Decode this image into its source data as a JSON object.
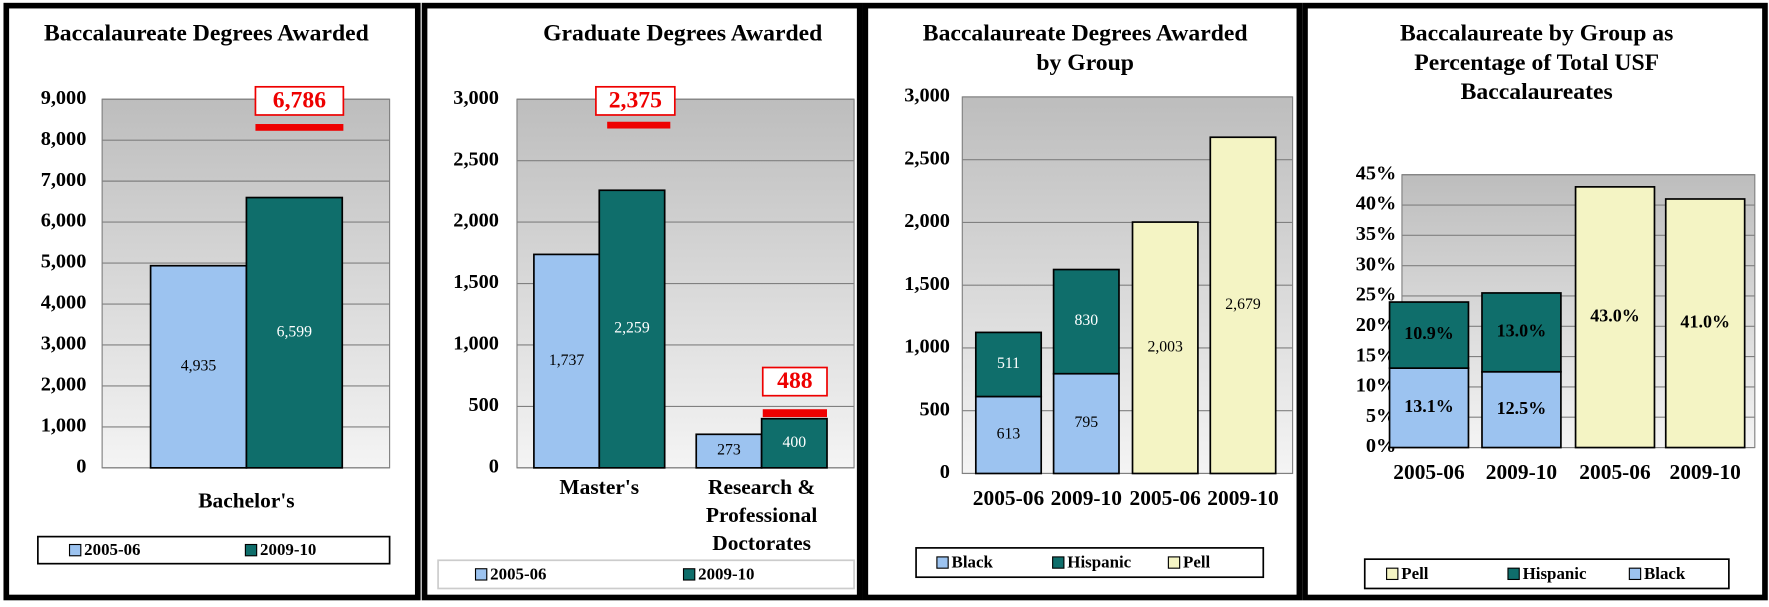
{
  "chart_data": [
    {
      "type": "bar",
      "stacked": false,
      "title": "Baccalaureate Degrees Awarded",
      "categories": [
        "Bachelor's"
      ],
      "series": [
        {
          "name": "2005-06",
          "color": "#9cc3f0",
          "values": [
            4935
          ],
          "value_labels": [
            "4,935"
          ]
        },
        {
          "name": "2009-10",
          "color": "#0f6e6b",
          "values": [
            6599
          ],
          "value_labels": [
            "6,599"
          ]
        }
      ],
      "ylim": [
        0,
        9000
      ],
      "yticks": [
        0,
        {
          "value": 1000,
          "label": "1,000"
        },
        {
          "value": 2000,
          "label": "2,000"
        },
        {
          "value": 3000,
          "label": "3,000"
        },
        {
          "value": 4000,
          "label": "4,000"
        },
        {
          "value": 5000,
          "label": "5,000"
        },
        {
          "value": 6000,
          "label": "6,000"
        },
        {
          "value": 7000,
          "label": "7,000"
        },
        {
          "value": 8000,
          "label": "8,000"
        },
        {
          "value": 9000,
          "label": "9,000"
        }
      ],
      "grid": true,
      "annotations": [
        "6,786"
      ]
    },
    {
      "type": "bar",
      "stacked": false,
      "title": "Graduate Degrees Awarded",
      "categories": [
        "Master's",
        "Research & Professional Doctorates"
      ],
      "series": [
        {
          "name": "2005-06",
          "color": "#9cc3f0",
          "values": [
            1737,
            273
          ],
          "value_labels": [
            "1,737",
            "273"
          ]
        },
        {
          "name": "2009-10",
          "color": "#0f6e6b",
          "values": [
            2259,
            400
          ],
          "value_labels": [
            "2,259",
            "400"
          ]
        }
      ],
      "ylim": [
        0,
        3000
      ],
      "yticks": [
        0,
        500,
        {
          "value": 1000,
          "label": "1,000"
        },
        {
          "value": 1500,
          "label": "1,500"
        },
        {
          "value": 2000,
          "label": "2,000"
        },
        {
          "value": 2500,
          "label": "2,500"
        },
        {
          "value": 3000,
          "label": "3,000"
        }
      ],
      "grid": true,
      "annotations": [
        "2,375",
        "488"
      ]
    },
    {
      "type": "bar",
      "stacked": true,
      "title": "Baccalaureate Degrees Awarded by Group",
      "categories": [
        "2005-06",
        "2009-10",
        "2005-06",
        "2009-10"
      ],
      "series": [
        {
          "name": "Black",
          "color": "#9cc3f0",
          "values": [
            613,
            795,
            null,
            null
          ]
        },
        {
          "name": "Hispanic",
          "color": "#0f6e6b",
          "values": [
            511,
            830,
            null,
            null
          ]
        },
        {
          "name": "Pell",
          "color": "#f4f4c4",
          "values": [
            null,
            null,
            2003,
            2679
          ],
          "value_labels": [
            null,
            null,
            "2,003",
            "2,679"
          ]
        }
      ],
      "ylim": [
        0,
        3000
      ],
      "yticks": [
        0,
        500,
        {
          "value": 1000,
          "label": "1,000"
        },
        {
          "value": 1500,
          "label": "1,500"
        },
        {
          "value": 2000,
          "label": "2,000"
        },
        {
          "value": 2500,
          "label": "2,500"
        },
        {
          "value": 3000,
          "label": "3,000"
        }
      ],
      "grid": true
    },
    {
      "type": "bar",
      "stacked": true,
      "legend_reversed": true,
      "title": "Baccalaureate by Group as Percentage of Total USF Baccalaureates",
      "categories": [
        "2005-06",
        "2009-10",
        "2005-06",
        "2009-10"
      ],
      "series": [
        {
          "name": "Black",
          "color": "#9cc3f0",
          "values": [
            13.1,
            12.5,
            null,
            null
          ],
          "value_labels": [
            "13.1%",
            "12.5%",
            null,
            null
          ]
        },
        {
          "name": "Hispanic",
          "color": "#0f6e6b",
          "values": [
            10.9,
            13.0,
            null,
            null
          ],
          "value_labels": [
            "10.9%",
            "13.0%",
            null,
            null
          ]
        },
        {
          "name": "Pell",
          "color": "#f4f4c4",
          "values": [
            null,
            null,
            43.0,
            41.0
          ],
          "value_labels": [
            null,
            null,
            "43.0%",
            "41.0%"
          ]
        }
      ],
      "ylim": [
        0,
        45
      ],
      "yticks": [
        {
          "value": 0,
          "label": "0%"
        },
        {
          "value": 5,
          "label": "5%"
        },
        {
          "value": 10,
          "label": "10%"
        },
        {
          "value": 15,
          "label": "15%"
        },
        {
          "value": 20,
          "label": "20%"
        },
        {
          "value": 25,
          "label": "25%"
        },
        {
          "value": 30,
          "label": "30%"
        },
        {
          "value": 35,
          "label": "35%"
        },
        {
          "value": 40,
          "label": "40%"
        },
        {
          "value": 45,
          "label": "45%"
        }
      ],
      "grid": true
    }
  ]
}
